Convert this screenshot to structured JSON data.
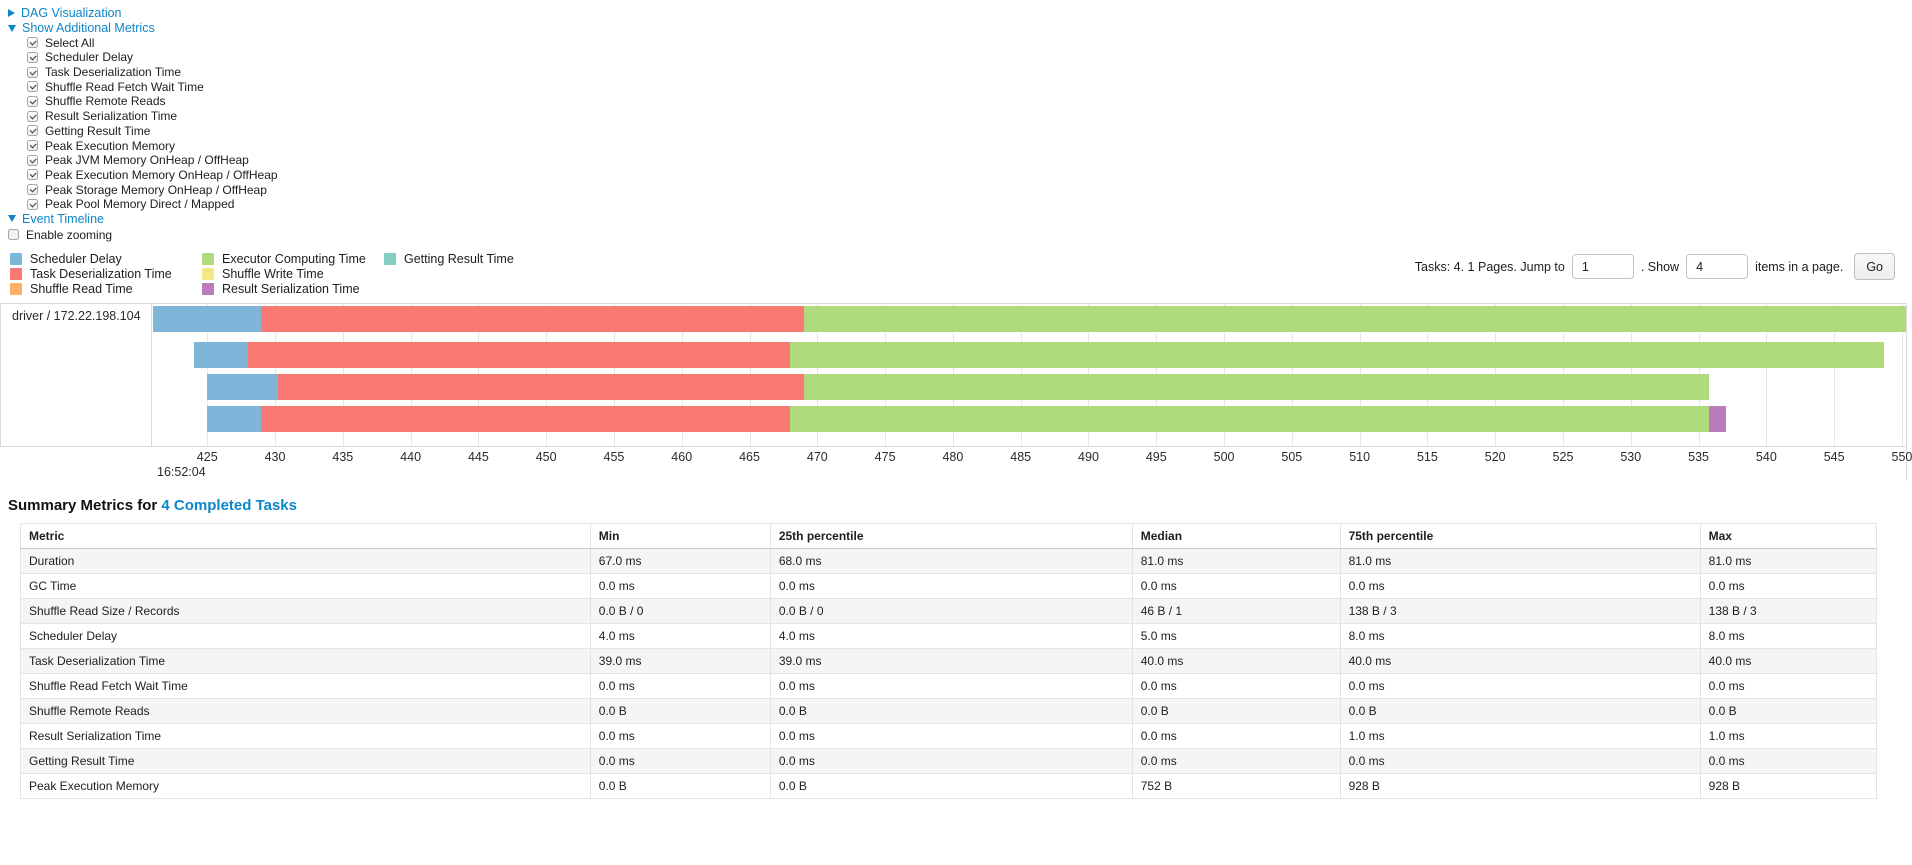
{
  "sections": {
    "dag_label": "DAG Visualization",
    "metrics_label": "Show Additional Metrics",
    "timeline_label": "Event Timeline",
    "enable_zooming_label": "Enable zooming",
    "enable_zooming_checked": false
  },
  "metrics_panel": {
    "items": [
      {
        "label": "Select All",
        "checked": true
      },
      {
        "label": "Scheduler Delay",
        "checked": true
      },
      {
        "label": "Task Deserialization Time",
        "checked": true
      },
      {
        "label": "Shuffle Read Fetch Wait Time",
        "checked": true
      },
      {
        "label": "Shuffle Remote Reads",
        "checked": true
      },
      {
        "label": "Result Serialization Time",
        "checked": true
      },
      {
        "label": "Getting Result Time",
        "checked": true
      },
      {
        "label": "Peak Execution Memory",
        "checked": true
      },
      {
        "label": "Peak JVM Memory OnHeap / OffHeap",
        "checked": true
      },
      {
        "label": "Peak Execution Memory OnHeap / OffHeap",
        "checked": true
      },
      {
        "label": "Peak Storage Memory OnHeap / OffHeap",
        "checked": true
      },
      {
        "label": "Peak Pool Memory Direct / Mapped",
        "checked": true
      }
    ]
  },
  "legend_columns": [
    [
      {
        "label": "Scheduler Delay",
        "metric": "scheduler-delay"
      },
      {
        "label": "Task Deserialization Time",
        "metric": "task-deserialization-time"
      },
      {
        "label": "Shuffle Read Time",
        "metric": "shuffle-read-time"
      }
    ],
    [
      {
        "label": "Executor Computing Time",
        "metric": "executor-computing-time"
      },
      {
        "label": "Shuffle Write Time",
        "metric": "shuffle-write-time"
      },
      {
        "label": "Result Serialization Time",
        "metric": "result-serialization-time"
      }
    ],
    [
      {
        "label": "Getting Result Time",
        "metric": "getting-result-time"
      }
    ]
  ],
  "pagination": {
    "prefix_text": "Tasks: 4. 1 Pages. Jump to",
    "jump_value": "1",
    "mid_text": ". Show",
    "show_value": "4",
    "suffix_text": "items in a page.",
    "go_label": "Go"
  },
  "chart_data": {
    "type": "timeline-gantt",
    "group_label": "driver / 172.22.198.104",
    "axis": {
      "min": 421,
      "max": 550.3,
      "ticks": [
        425,
        430,
        435,
        440,
        445,
        450,
        455,
        460,
        465,
        470,
        475,
        480,
        485,
        490,
        495,
        500,
        505,
        510,
        515,
        520,
        525,
        530,
        535,
        540,
        545,
        550
      ],
      "major_label": "16:52:04"
    },
    "palette": {
      "scheduler-delay": "#7FB5D8",
      "task-deserialization-time": "#F87971",
      "shuffle-read-time": "#FBB167",
      "executor-computing-time": "#AFDA7E",
      "shuffle-write-time": "#F2E884",
      "result-serialization-time": "#BA7CBC",
      "getting-result-time": "#84CEC1"
    },
    "tasks": [
      {
        "segments": [
          {
            "metric": "scheduler-delay",
            "start": 421.0,
            "end": 429.0
          },
          {
            "metric": "task-deserialization-time",
            "start": 429.0,
            "end": 469.0
          },
          {
            "metric": "executor-computing-time",
            "start": 469.0,
            "end": 550.3
          }
        ]
      },
      {
        "segments": [
          {
            "metric": "scheduler-delay",
            "start": 424.0,
            "end": 428.0
          },
          {
            "metric": "task-deserialization-time",
            "start": 428.0,
            "end": 468.0
          },
          {
            "metric": "executor-computing-time",
            "start": 468.0,
            "end": 548.7
          }
        ]
      },
      {
        "segments": [
          {
            "metric": "scheduler-delay",
            "start": 425.0,
            "end": 430.2
          },
          {
            "metric": "task-deserialization-time",
            "start": 430.2,
            "end": 469.0
          },
          {
            "metric": "executor-computing-time",
            "start": 469.0,
            "end": 535.8
          }
        ]
      },
      {
        "segments": [
          {
            "metric": "scheduler-delay",
            "start": 425.0,
            "end": 429.0
          },
          {
            "metric": "task-deserialization-time",
            "start": 429.0,
            "end": 468.0
          },
          {
            "metric": "executor-computing-time",
            "start": 468.0,
            "end": 535.8
          },
          {
            "metric": "result-serialization-time",
            "start": 535.8,
            "end": 537.0
          }
        ]
      }
    ]
  },
  "summary": {
    "title_prefix": "Summary Metrics for",
    "title_link": "4 Completed Tasks",
    "columns": [
      "Metric",
      "Min",
      "25th percentile",
      "Median",
      "75th percentile",
      "Max"
    ],
    "rows": [
      [
        "Duration",
        "67.0 ms",
        "68.0 ms",
        "81.0 ms",
        "81.0 ms",
        "81.0 ms"
      ],
      [
        "GC Time",
        "0.0 ms",
        "0.0 ms",
        "0.0 ms",
        "0.0 ms",
        "0.0 ms"
      ],
      [
        "Shuffle Read Size / Records",
        "0.0 B / 0",
        "0.0 B / 0",
        "46 B / 1",
        "138 B / 3",
        "138 B / 3"
      ],
      [
        "Scheduler Delay",
        "4.0 ms",
        "4.0 ms",
        "5.0 ms",
        "8.0 ms",
        "8.0 ms"
      ],
      [
        "Task Deserialization Time",
        "39.0 ms",
        "39.0 ms",
        "40.0 ms",
        "40.0 ms",
        "40.0 ms"
      ],
      [
        "Shuffle Read Fetch Wait Time",
        "0.0 ms",
        "0.0 ms",
        "0.0 ms",
        "0.0 ms",
        "0.0 ms"
      ],
      [
        "Shuffle Remote Reads",
        "0.0 B",
        "0.0 B",
        "0.0 B",
        "0.0 B",
        "0.0 B"
      ],
      [
        "Result Serialization Time",
        "0.0 ms",
        "0.0 ms",
        "0.0 ms",
        "1.0 ms",
        "1.0 ms"
      ],
      [
        "Getting Result Time",
        "0.0 ms",
        "0.0 ms",
        "0.0 ms",
        "0.0 ms",
        "0.0 ms"
      ],
      [
        "Peak Execution Memory",
        "0.0 B",
        "0.0 B",
        "752 B",
        "928 B",
        "928 B"
      ]
    ]
  }
}
